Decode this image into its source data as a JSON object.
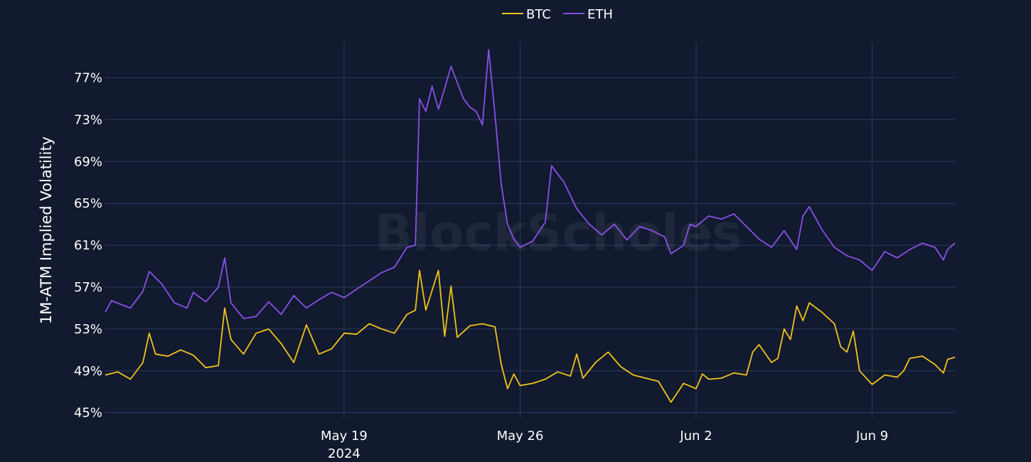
{
  "watermark": "BlockScholes",
  "chart_data": {
    "type": "line",
    "title": "",
    "xlabel": "",
    "ylabel": "1M-ATM Implied Volatility",
    "x_range": [
      "2024-05-09T12:00",
      "2024-06-12T07:00"
    ],
    "ylim": [
      44.5,
      80.5
    ],
    "y_ticks": [
      45,
      49,
      53,
      57,
      61,
      65,
      69,
      73,
      77
    ],
    "y_tick_labels": [
      "45%",
      "49%",
      "53%",
      "57%",
      "61%",
      "65%",
      "69%",
      "73%",
      "77%"
    ],
    "x_ticks": [
      {
        "date": "2024-05-19",
        "label": "May 19",
        "sublabel": "2024"
      },
      {
        "date": "2024-05-26",
        "label": "May 26",
        "sublabel": ""
      },
      {
        "date": "2024-06-02",
        "label": "Jun 2",
        "sublabel": ""
      },
      {
        "date": "2024-06-09",
        "label": "Jun 9",
        "sublabel": ""
      }
    ],
    "grid": true,
    "legend_position": "top-center",
    "series": [
      {
        "name": "BTC",
        "color": "#f2c21b",
        "points": [
          [
            "2024-05-09T12:00",
            48.6
          ],
          [
            "2024-05-10T00:00",
            48.9
          ],
          [
            "2024-05-10T12:00",
            48.2
          ],
          [
            "2024-05-11T00:00",
            49.8
          ],
          [
            "2024-05-11T06:00",
            52.6
          ],
          [
            "2024-05-11T12:00",
            50.6
          ],
          [
            "2024-05-12T00:00",
            50.4
          ],
          [
            "2024-05-12T12:00",
            51.0
          ],
          [
            "2024-05-13T00:00",
            50.5
          ],
          [
            "2024-05-13T12:00",
            49.3
          ],
          [
            "2024-05-14T00:00",
            49.5
          ],
          [
            "2024-05-14T06:00",
            55.0
          ],
          [
            "2024-05-14T12:00",
            52.0
          ],
          [
            "2024-05-15T00:00",
            50.6
          ],
          [
            "2024-05-15T12:00",
            52.6
          ],
          [
            "2024-05-16T00:00",
            53.0
          ],
          [
            "2024-05-16T12:00",
            51.6
          ],
          [
            "2024-05-17T00:00",
            49.8
          ],
          [
            "2024-05-17T12:00",
            53.4
          ],
          [
            "2024-05-18T00:00",
            50.6
          ],
          [
            "2024-05-18T12:00",
            51.1
          ],
          [
            "2024-05-19T00:00",
            52.6
          ],
          [
            "2024-05-19T12:00",
            52.5
          ],
          [
            "2024-05-20T00:00",
            53.5
          ],
          [
            "2024-05-20T12:00",
            53.0
          ],
          [
            "2024-05-21T00:00",
            52.6
          ],
          [
            "2024-05-21T12:00",
            54.4
          ],
          [
            "2024-05-21T20:00",
            54.8
          ],
          [
            "2024-05-22T00:00",
            58.6
          ],
          [
            "2024-05-22T06:00",
            54.8
          ],
          [
            "2024-05-22T18:00",
            58.6
          ],
          [
            "2024-05-23T00:00",
            52.3
          ],
          [
            "2024-05-23T06:00",
            57.1
          ],
          [
            "2024-05-23T12:00",
            52.2
          ],
          [
            "2024-05-24T00:00",
            53.3
          ],
          [
            "2024-05-24T12:00",
            53.5
          ],
          [
            "2024-05-25T00:00",
            53.2
          ],
          [
            "2024-05-25T06:00",
            49.6
          ],
          [
            "2024-05-25T12:00",
            47.3
          ],
          [
            "2024-05-25T18:00",
            48.7
          ],
          [
            "2024-05-26T00:00",
            47.6
          ],
          [
            "2024-05-26T12:00",
            47.8
          ],
          [
            "2024-05-27T00:00",
            48.2
          ],
          [
            "2024-05-27T12:00",
            48.9
          ],
          [
            "2024-05-28T00:00",
            48.5
          ],
          [
            "2024-05-28T06:00",
            50.6
          ],
          [
            "2024-05-28T12:00",
            48.3
          ],
          [
            "2024-05-29T00:00",
            49.8
          ],
          [
            "2024-05-29T12:00",
            50.8
          ],
          [
            "2024-05-30T00:00",
            49.4
          ],
          [
            "2024-05-30T12:00",
            48.6
          ],
          [
            "2024-05-31T00:00",
            48.3
          ],
          [
            "2024-05-31T12:00",
            48.0
          ],
          [
            "2024-06-01T00:00",
            46.0
          ],
          [
            "2024-06-01T12:00",
            47.8
          ],
          [
            "2024-06-02T00:00",
            47.3
          ],
          [
            "2024-06-02T06:00",
            48.7
          ],
          [
            "2024-06-02T12:00",
            48.2
          ],
          [
            "2024-06-03T00:00",
            48.3
          ],
          [
            "2024-06-03T12:00",
            48.8
          ],
          [
            "2024-06-04T00:00",
            48.6
          ],
          [
            "2024-06-04T06:00",
            50.8
          ],
          [
            "2024-06-04T12:00",
            51.5
          ],
          [
            "2024-06-05T00:00",
            49.8
          ],
          [
            "2024-06-05T06:00",
            50.2
          ],
          [
            "2024-06-05T12:00",
            53.0
          ],
          [
            "2024-06-05T18:00",
            52.0
          ],
          [
            "2024-06-06T00:00",
            55.2
          ],
          [
            "2024-06-06T06:00",
            53.8
          ],
          [
            "2024-06-06T12:00",
            55.5
          ],
          [
            "2024-06-07T00:00",
            54.6
          ],
          [
            "2024-06-07T12:00",
            53.5
          ],
          [
            "2024-06-07T18:00",
            51.3
          ],
          [
            "2024-06-08T00:00",
            50.8
          ],
          [
            "2024-06-08T06:00",
            52.8
          ],
          [
            "2024-06-08T12:00",
            49.0
          ],
          [
            "2024-06-09T00:00",
            47.7
          ],
          [
            "2024-06-09T12:00",
            48.6
          ],
          [
            "2024-06-10T00:00",
            48.4
          ],
          [
            "2024-06-10T06:00",
            49.0
          ],
          [
            "2024-06-10T12:00",
            50.2
          ],
          [
            "2024-06-11T00:00",
            50.4
          ],
          [
            "2024-06-11T12:00",
            49.6
          ],
          [
            "2024-06-11T20:00",
            48.8
          ],
          [
            "2024-06-12T00:00",
            50.1
          ],
          [
            "2024-06-12T07:00",
            50.3
          ]
        ]
      },
      {
        "name": "ETH",
        "color": "#8a4fe8",
        "points": [
          [
            "2024-05-09T12:00",
            54.6
          ],
          [
            "2024-05-09T18:00",
            55.7
          ],
          [
            "2024-05-10T12:00",
            55.0
          ],
          [
            "2024-05-11T00:00",
            56.6
          ],
          [
            "2024-05-11T06:00",
            58.5
          ],
          [
            "2024-05-11T18:00",
            57.3
          ],
          [
            "2024-05-12T06:00",
            55.5
          ],
          [
            "2024-05-12T18:00",
            55.0
          ],
          [
            "2024-05-13T00:00",
            56.5
          ],
          [
            "2024-05-13T12:00",
            55.6
          ],
          [
            "2024-05-14T00:00",
            57.0
          ],
          [
            "2024-05-14T06:00",
            59.8
          ],
          [
            "2024-05-14T12:00",
            55.5
          ],
          [
            "2024-05-15T00:00",
            54.0
          ],
          [
            "2024-05-15T12:00",
            54.2
          ],
          [
            "2024-05-16T00:00",
            55.6
          ],
          [
            "2024-05-16T12:00",
            54.4
          ],
          [
            "2024-05-17T00:00",
            56.2
          ],
          [
            "2024-05-17T12:00",
            55.0
          ],
          [
            "2024-05-18T00:00",
            55.8
          ],
          [
            "2024-05-18T12:00",
            56.5
          ],
          [
            "2024-05-19T00:00",
            56.0
          ],
          [
            "2024-05-19T12:00",
            56.8
          ],
          [
            "2024-05-20T00:00",
            57.6
          ],
          [
            "2024-05-20T12:00",
            58.4
          ],
          [
            "2024-05-21T00:00",
            58.9
          ],
          [
            "2024-05-21T12:00",
            60.8
          ],
          [
            "2024-05-21T20:00",
            61.0
          ],
          [
            "2024-05-22T00:00",
            75.0
          ],
          [
            "2024-05-22T06:00",
            73.8
          ],
          [
            "2024-05-22T12:00",
            76.2
          ],
          [
            "2024-05-22T18:00",
            74.0
          ],
          [
            "2024-05-23T00:00",
            76.0
          ],
          [
            "2024-05-23T06:00",
            78.1
          ],
          [
            "2024-05-23T18:00",
            75.0
          ],
          [
            "2024-05-24T00:00",
            74.2
          ],
          [
            "2024-05-24T06:00",
            73.8
          ],
          [
            "2024-05-24T12:00",
            72.5
          ],
          [
            "2024-05-24T18:00",
            79.7
          ],
          [
            "2024-05-25T00:00",
            73.5
          ],
          [
            "2024-05-25T06:00",
            66.8
          ],
          [
            "2024-05-25T12:00",
            63.0
          ],
          [
            "2024-05-25T18:00",
            61.6
          ],
          [
            "2024-05-26T00:00",
            60.8
          ],
          [
            "2024-05-26T12:00",
            61.4
          ],
          [
            "2024-05-27T00:00",
            63.2
          ],
          [
            "2024-05-27T06:00",
            68.6
          ],
          [
            "2024-05-27T18:00",
            67.0
          ],
          [
            "2024-05-28T06:00",
            64.5
          ],
          [
            "2024-05-28T18:00",
            63.0
          ],
          [
            "2024-05-29T06:00",
            62.0
          ],
          [
            "2024-05-29T18:00",
            63.0
          ],
          [
            "2024-05-30T06:00",
            61.5
          ],
          [
            "2024-05-30T18:00",
            62.8
          ],
          [
            "2024-05-31T06:00",
            62.4
          ],
          [
            "2024-05-31T18:00",
            61.8
          ],
          [
            "2024-06-01T00:00",
            60.2
          ],
          [
            "2024-06-01T12:00",
            61.0
          ],
          [
            "2024-06-01T18:00",
            63.0
          ],
          [
            "2024-06-02T00:00",
            62.8
          ],
          [
            "2024-06-02T12:00",
            63.8
          ],
          [
            "2024-06-03T00:00",
            63.5
          ],
          [
            "2024-06-03T12:00",
            64.0
          ],
          [
            "2024-06-04T00:00",
            62.8
          ],
          [
            "2024-06-04T12:00",
            61.6
          ],
          [
            "2024-06-05T00:00",
            60.8
          ],
          [
            "2024-06-05T12:00",
            62.4
          ],
          [
            "2024-06-06T00:00",
            60.6
          ],
          [
            "2024-06-06T06:00",
            63.8
          ],
          [
            "2024-06-06T12:00",
            64.7
          ],
          [
            "2024-06-07T00:00",
            62.5
          ],
          [
            "2024-06-07T12:00",
            60.8
          ],
          [
            "2024-06-08T00:00",
            60.0
          ],
          [
            "2024-06-08T12:00",
            59.6
          ],
          [
            "2024-06-09T00:00",
            58.6
          ],
          [
            "2024-06-09T12:00",
            60.4
          ],
          [
            "2024-06-10T00:00",
            59.8
          ],
          [
            "2024-06-10T12:00",
            60.6
          ],
          [
            "2024-06-11T00:00",
            61.2
          ],
          [
            "2024-06-11T12:00",
            60.8
          ],
          [
            "2024-06-11T20:00",
            59.6
          ],
          [
            "2024-06-12T00:00",
            60.6
          ],
          [
            "2024-06-12T07:00",
            61.2
          ]
        ]
      }
    ]
  }
}
